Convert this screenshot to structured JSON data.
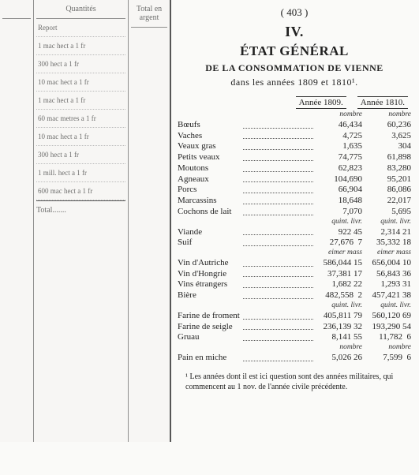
{
  "pageNumber": "( 403 )",
  "sectionRoman": "IV.",
  "title": "ÉTAT GÉNÉRAL",
  "subtitle1": "DE LA CONSOMMATION DE VIENNE",
  "subtitle2": "dans les années 1809 et 1810¹.",
  "colHeads": {
    "y1": "Année 1809.",
    "y2": "Année 1810."
  },
  "unitLabels": {
    "nombre": "nombre",
    "quintLivr": "quint. livr.",
    "eimerMass": "eimer mass",
    "quintLivr2": "quint. livr."
  },
  "groups": [
    {
      "unit1": "nombre",
      "unit2": "nombre",
      "rows": [
        {
          "label": "Bœufs",
          "v1": "46,434",
          "v2": "60,236"
        },
        {
          "label": "Vaches",
          "v1": "4,725",
          "v2": "3,625"
        },
        {
          "label": "Veaux gras",
          "v1": "1,635",
          "v2": "304"
        },
        {
          "label": "Petits veaux",
          "v1": "74,775",
          "v2": "61,898"
        },
        {
          "label": "Moutons",
          "v1": "62,823",
          "v2": "83,280"
        },
        {
          "label": "Agneaux",
          "v1": "104,690",
          "v2": "95,201"
        },
        {
          "label": "Porcs",
          "v1": "66,904",
          "v2": "86,086"
        },
        {
          "label": "Marcassins",
          "v1": "18,648",
          "v2": "22,017"
        },
        {
          "label": "Cochons de lait",
          "v1": "7,070",
          "v2": "5,695"
        }
      ]
    },
    {
      "unit1": "quint. livr.",
      "unit2": "quint. livr.",
      "rows": [
        {
          "label": "Viande",
          "v1": "922 45",
          "v2": "2,314 21"
        },
        {
          "label": "Suif",
          "v1": "27,676  7",
          "v2": "35,332 18"
        }
      ]
    },
    {
      "unit1": "eimer mass",
      "unit2": "eimer mass",
      "rows": [
        {
          "label": "Vin d'Autriche",
          "v1": "586,044 15",
          "v2": "656,004 10"
        },
        {
          "label": "Vin d'Hongrie",
          "v1": "37,381 17",
          "v2": "56,843 36"
        },
        {
          "label": "Vins étrangers",
          "v1": "1,682 22",
          "v2": "1,293 31"
        },
        {
          "label": "Bière",
          "v1": "482,558  2",
          "v2": "457,421 38"
        }
      ]
    },
    {
      "unit1": "quint. livr.",
      "unit2": "quint. livr.",
      "rows": [
        {
          "label": "Farine de froment",
          "v1": "405,811 79",
          "v2": "560,120 69"
        },
        {
          "label": "Farine de seigle",
          "v1": "236,139 32",
          "v2": "193,290 54"
        },
        {
          "label": "Gruau",
          "v1": "8,141 55",
          "v2": "11,782  6"
        }
      ]
    },
    {
      "unit1": "nombre",
      "unit2": "nombre",
      "rows": [
        {
          "label": "Pain en miche",
          "v1": "5,026 26",
          "v2": "7,599  6"
        }
      ]
    }
  ],
  "footnote": "¹  Les années dont il est ici question sont des années militaires, qui commencent au 1 nov. de l'année civile précédente.",
  "ghost": {
    "headers": [
      "",
      "Quantités",
      "Total en argent"
    ],
    "rows": [
      "Report",
      "1 mac hect  a 1 fr",
      "300 hect  a 1 fr",
      "10 mac hect  a 1 fr",
      "1 mac hect  a 1 fr",
      "60 mac metres a 1 fr",
      "10 mac hect  a 1 fr",
      "300 hect  a 1 fr",
      "1 mill. hect  a 1 fr",
      "600 mac hect  a 1 fr"
    ],
    "total": "Total......."
  },
  "colors": {
    "text": "#222",
    "dots": "#555",
    "ghostBorder": "#555",
    "bg": "#fafaf8"
  },
  "fontSizes": {
    "title": 17,
    "body": 11,
    "foot": 10
  }
}
